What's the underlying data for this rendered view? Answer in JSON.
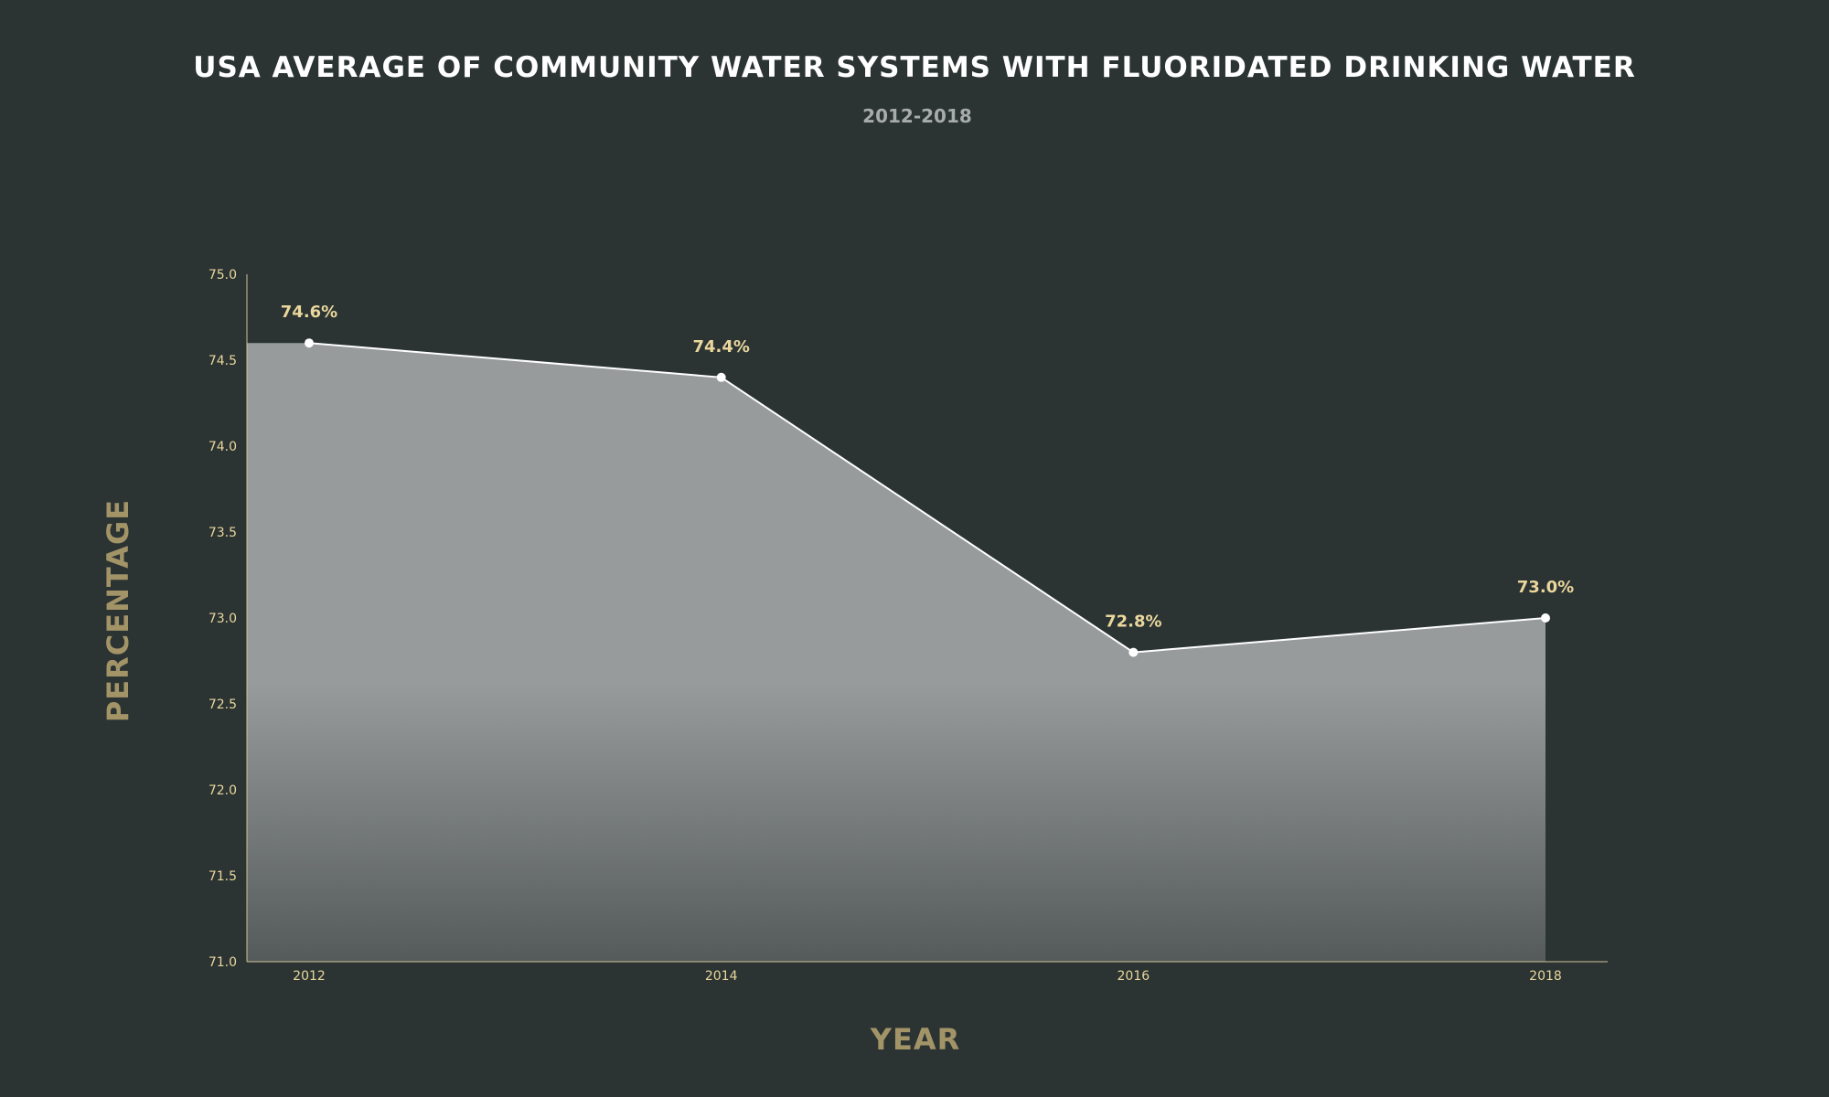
{
  "colors": {
    "background": "#2b3333",
    "title": "#ffffff",
    "subtitle": "#a7abaa",
    "axis_title": "#a39468",
    "tick": "#e9d79c",
    "axis_line": "#cfc39a",
    "data_label": "#e9d79c",
    "line": "#ffffff",
    "area_top": "#979b9b",
    "area_bottom": "#555a5a"
  },
  "chart_data": {
    "type": "area",
    "title": "USA AVERAGE OF COMMUNITY WATER SYSTEMS WITH FLUORIDATED DRINKING WATER",
    "subtitle": "2012-2018",
    "xlabel": "YEAR",
    "ylabel": "PERCENTAGE",
    "x": [
      "2012",
      "2014",
      "2016",
      "2018"
    ],
    "values": [
      74.6,
      74.4,
      72.8,
      73.0
    ],
    "data_labels": [
      "74.6%",
      "74.4%",
      "72.8%",
      "73.0%"
    ],
    "ylim": [
      71.0,
      75.0
    ],
    "yticks": [
      "71.0",
      "71.5",
      "72.0",
      "72.5",
      "73.0",
      "73.5",
      "74.0",
      "74.5",
      "75.0"
    ],
    "grid": false,
    "legend": "none"
  }
}
